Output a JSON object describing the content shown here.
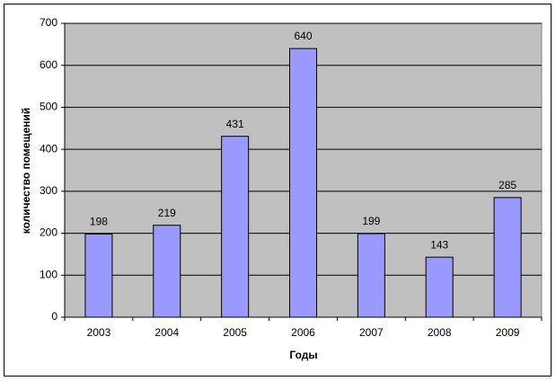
{
  "chart_data": {
    "type": "bar",
    "categories": [
      "2003",
      "2004",
      "2005",
      "2006",
      "2007",
      "2008",
      "2009"
    ],
    "values": [
      198,
      219,
      431,
      640,
      199,
      143,
      285
    ],
    "color": "#9999ff",
    "ylim": [
      0,
      700
    ],
    "yticks": [
      0,
      100,
      200,
      300,
      400,
      500,
      600,
      700
    ],
    "grid": true,
    "x_label": "Годы",
    "y_label": "количество помещений",
    "show_value_labels": true
  }
}
